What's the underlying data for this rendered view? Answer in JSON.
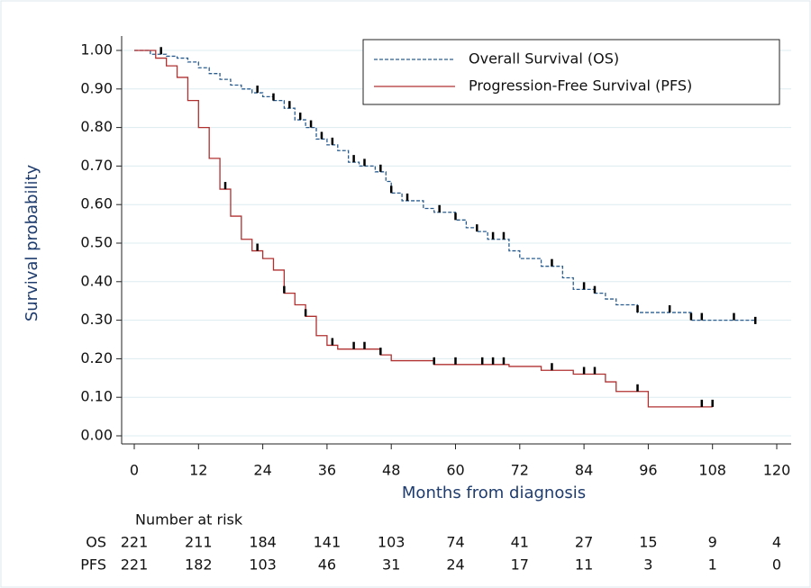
{
  "chart_data": {
    "type": "km",
    "xlabel": "Months from diagnosis",
    "ylabel": "Survival probability",
    "xlim": [
      0,
      120
    ],
    "ylim": [
      0,
      1
    ],
    "xticks": [
      0,
      12,
      24,
      36,
      48,
      60,
      72,
      84,
      96,
      108,
      120
    ],
    "yticks": [
      {
        "value": 0,
        "label": "0.00"
      },
      {
        "value": 0.1,
        "label": "0.10"
      },
      {
        "value": 0.2,
        "label": "0.20"
      },
      {
        "value": 0.3,
        "label": "0.30"
      },
      {
        "value": 0.4,
        "label": "0.40"
      },
      {
        "value": 0.5,
        "label": "0.50"
      },
      {
        "value": 0.6,
        "label": "0.60"
      },
      {
        "value": 0.7,
        "label": "0.70"
      },
      {
        "value": 0.8,
        "label": "0.80"
      },
      {
        "value": 0.9,
        "label": "0.90"
      },
      {
        "value": 1,
        "label": "1.00"
      }
    ],
    "grid": true,
    "legend": "top-right",
    "series": [
      {
        "name": "Overall Survival (OS)",
        "color": "#2a5d8f",
        "dash": true,
        "x": [
          0,
          3,
          6,
          8,
          10,
          12,
          14,
          16,
          18,
          20,
          22,
          24,
          26,
          28,
          30,
          32,
          34,
          36,
          38,
          40,
          42,
          45,
          47,
          48,
          50,
          54,
          56,
          60,
          62,
          64,
          66,
          70,
          72,
          76,
          80,
          82,
          86,
          88,
          90,
          94,
          104,
          116
        ],
        "values": [
          1,
          0.99,
          0.985,
          0.98,
          0.97,
          0.955,
          0.94,
          0.925,
          0.91,
          0.9,
          0.89,
          0.88,
          0.87,
          0.85,
          0.82,
          0.8,
          0.77,
          0.755,
          0.74,
          0.71,
          0.7,
          0.685,
          0.66,
          0.63,
          0.61,
          0.59,
          0.58,
          0.56,
          0.54,
          0.53,
          0.51,
          0.48,
          0.46,
          0.44,
          0.41,
          0.38,
          0.37,
          0.355,
          0.34,
          0.32,
          0.3,
          0.29
        ],
        "censored": [
          5,
          23,
          26,
          29,
          31,
          33,
          35,
          37,
          41,
          43,
          46,
          48,
          51,
          57,
          60,
          64,
          67,
          69,
          78,
          84,
          86,
          94,
          100,
          104,
          106,
          112,
          116
        ]
      },
      {
        "name": "Progression-Free Survival (PFS)",
        "color": "#b03030",
        "dash": false,
        "x": [
          0,
          4,
          6,
          8,
          10,
          12,
          14,
          16,
          18,
          20,
          22,
          24,
          26,
          28,
          30,
          32,
          34,
          36,
          38,
          46,
          48,
          56,
          70,
          76,
          82,
          88,
          90,
          96,
          108
        ],
        "values": [
          1,
          0.98,
          0.96,
          0.93,
          0.87,
          0.8,
          0.72,
          0.64,
          0.57,
          0.51,
          0.48,
          0.46,
          0.43,
          0.37,
          0.34,
          0.31,
          0.26,
          0.235,
          0.225,
          0.21,
          0.195,
          0.185,
          0.18,
          0.17,
          0.16,
          0.14,
          0.115,
          0.075,
          0.075
        ],
        "censored": [
          17,
          23,
          28,
          32,
          37,
          41,
          43,
          46,
          56,
          60,
          65,
          67,
          69,
          78,
          84,
          86,
          94,
          106,
          108
        ]
      }
    ],
    "risk_table": {
      "title": "Number at risk",
      "rows": [
        {
          "name": "OS",
          "values": [
            221,
            211,
            184,
            141,
            103,
            74,
            41,
            27,
            15,
            9,
            4
          ]
        },
        {
          "name": "PFS",
          "values": [
            221,
            182,
            103,
            46,
            31,
            24,
            17,
            11,
            3,
            1,
            0
          ]
        }
      ]
    }
  }
}
